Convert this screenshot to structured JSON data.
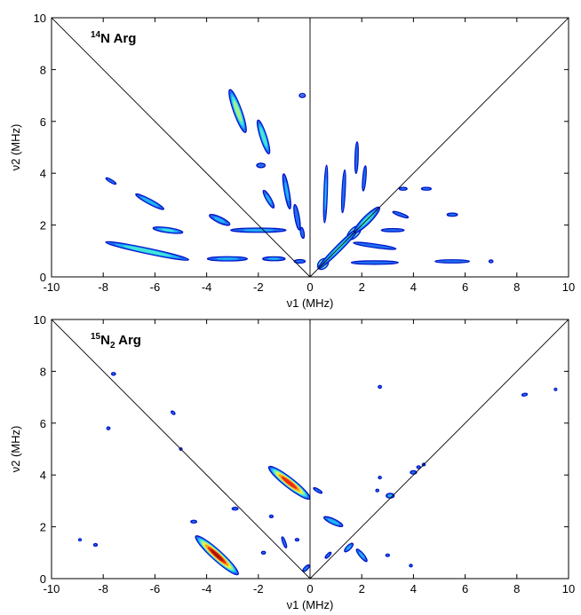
{
  "chart_data": [
    {
      "type": "contour",
      "title_sup": "14",
      "title_main": "N Arg",
      "title_sub": "",
      "title_tail": "",
      "xlabel": "ν1 (MHz)",
      "ylabel": "ν2 (MHz)",
      "xlim": [
        -10,
        10
      ],
      "ylim": [
        0,
        10
      ],
      "xticks": [
        -10,
        -8,
        -6,
        -4,
        -2,
        0,
        2,
        4,
        6,
        8,
        10
      ],
      "yticks": [
        0,
        2,
        4,
        6,
        8,
        10
      ],
      "grid": false,
      "reference_lines": [
        {
          "from": [
            -10,
            10
          ],
          "to": [
            0,
            0
          ]
        },
        {
          "from": [
            0,
            0
          ],
          "to": [
            10,
            10
          ]
        },
        {
          "from": [
            0,
            0
          ],
          "to": [
            0,
            10
          ]
        }
      ],
      "ridges": [
        {
          "center": [
            -2.8,
            6.4
          ],
          "length": 1.9,
          "width": 0.32,
          "angle": -70,
          "peak": 0.6
        },
        {
          "center": [
            -1.8,
            5.4
          ],
          "length": 1.5,
          "width": 0.26,
          "angle": -72,
          "peak": 0.5
        },
        {
          "center": [
            -0.3,
            7.0
          ],
          "length": 0.3,
          "width": 0.2,
          "angle": 0,
          "peak": 0.15
        },
        {
          "center": [
            -6.3,
            1.0
          ],
          "length": 3.6,
          "width": 0.22,
          "angle": -12,
          "peak": 0.5
        },
        {
          "center": [
            -5.5,
            1.8
          ],
          "length": 1.3,
          "width": 0.2,
          "angle": -8,
          "peak": 0.4
        },
        {
          "center": [
            -6.2,
            2.9
          ],
          "length": 1.4,
          "width": 0.2,
          "angle": -28,
          "peak": 0.35
        },
        {
          "center": [
            -7.7,
            3.7
          ],
          "length": 0.6,
          "width": 0.12,
          "angle": -30,
          "peak": 0.15
        },
        {
          "center": [
            -3.5,
            2.2
          ],
          "length": 1.0,
          "width": 0.25,
          "angle": -25,
          "peak": 0.3
        },
        {
          "center": [
            -3.2,
            0.7
          ],
          "length": 1.8,
          "width": 0.18,
          "angle": 0,
          "peak": 0.3
        },
        {
          "center": [
            -1.4,
            0.7
          ],
          "length": 1.0,
          "width": 0.16,
          "angle": 0,
          "peak": 0.3
        },
        {
          "center": [
            -2.0,
            1.8
          ],
          "length": 2.5,
          "width": 0.18,
          "angle": 0,
          "peak": 0.3
        },
        {
          "center": [
            -1.6,
            3.0
          ],
          "length": 0.9,
          "width": 0.2,
          "angle": -60,
          "peak": 0.3
        },
        {
          "center": [
            -1.9,
            4.3
          ],
          "length": 0.4,
          "width": 0.2,
          "angle": 0,
          "peak": 0.2
        },
        {
          "center": [
            -0.9,
            3.3
          ],
          "length": 1.6,
          "width": 0.2,
          "angle": -80,
          "peak": 0.3
        },
        {
          "center": [
            -0.5,
            2.3
          ],
          "length": 1.2,
          "width": 0.2,
          "angle": -80,
          "peak": 0.25
        },
        {
          "center": [
            -0.4,
            0.6
          ],
          "length": 0.5,
          "width": 0.15,
          "angle": 0,
          "peak": 0.25
        },
        {
          "center": [
            -0.3,
            1.7
          ],
          "length": 0.5,
          "width": 0.15,
          "angle": -80,
          "peak": 0.25
        },
        {
          "center": [
            0.5,
            0.5
          ],
          "length": 0.5,
          "width": 0.35,
          "angle": 45,
          "peak": 1.0
        },
        {
          "center": [
            1.7,
            1.7
          ],
          "length": 0.7,
          "width": 0.35,
          "angle": 45,
          "peak": 0.9
        },
        {
          "center": [
            1.1,
            1.1
          ],
          "length": 2.5,
          "width": 0.25,
          "angle": 45,
          "peak": 0.4
        },
        {
          "center": [
            2.2,
            2.2
          ],
          "length": 1.5,
          "width": 0.32,
          "angle": 45,
          "peak": 0.45
        },
        {
          "center": [
            0.6,
            3.2
          ],
          "length": 2.6,
          "width": 0.14,
          "angle": 88,
          "peak": 0.3
        },
        {
          "center": [
            1.3,
            3.3
          ],
          "length": 2.0,
          "width": 0.12,
          "angle": 87,
          "peak": 0.25
        },
        {
          "center": [
            1.8,
            4.6
          ],
          "length": 1.5,
          "width": 0.1,
          "angle": 88,
          "peak": 0.22
        },
        {
          "center": [
            2.1,
            3.8
          ],
          "length": 1.2,
          "width": 0.12,
          "angle": 85,
          "peak": 0.22
        },
        {
          "center": [
            2.5,
            1.2
          ],
          "length": 2.0,
          "width": 0.16,
          "angle": -8,
          "peak": 0.25
        },
        {
          "center": [
            2.5,
            0.55
          ],
          "length": 2.2,
          "width": 0.15,
          "angle": 0,
          "peak": 0.25
        },
        {
          "center": [
            5.5,
            2.4
          ],
          "length": 0.5,
          "width": 0.12,
          "angle": 0,
          "peak": 0.2
        },
        {
          "center": [
            5.5,
            0.6
          ],
          "length": 1.6,
          "width": 0.12,
          "angle": 0,
          "peak": 0.25
        },
        {
          "center": [
            7.0,
            0.6
          ],
          "length": 0.2,
          "width": 0.1,
          "angle": 0,
          "peak": 0.15
        },
        {
          "center": [
            3.5,
            2.4
          ],
          "length": 0.8,
          "width": 0.13,
          "angle": -20,
          "peak": 0.2
        },
        {
          "center": [
            4.5,
            3.4
          ],
          "length": 0.5,
          "width": 0.1,
          "angle": 0,
          "peak": 0.15
        },
        {
          "center": [
            3.6,
            3.4
          ],
          "length": 0.4,
          "width": 0.12,
          "angle": 0,
          "peak": 0.15
        },
        {
          "center": [
            3.2,
            1.8
          ],
          "length": 1.1,
          "width": 0.12,
          "angle": 0,
          "peak": 0.2
        }
      ]
    },
    {
      "type": "contour",
      "title_sup": "15",
      "title_main": "N",
      "title_sub": "2",
      "title_tail": " Arg",
      "xlabel": "ν1 (MHz)",
      "ylabel": "ν2 (MHz)",
      "xlim": [
        -10,
        10
      ],
      "ylim": [
        0,
        10
      ],
      "xticks": [
        -10,
        -8,
        -6,
        -4,
        -2,
        0,
        2,
        4,
        6,
        8,
        10
      ],
      "yticks": [
        0,
        2,
        4,
        6,
        8,
        10
      ],
      "grid": false,
      "reference_lines": [
        {
          "from": [
            -10,
            10
          ],
          "to": [
            0,
            0
          ]
        },
        {
          "from": [
            0,
            0
          ],
          "to": [
            10,
            10
          ]
        },
        {
          "from": [
            0,
            0
          ],
          "to": [
            0,
            10
          ]
        }
      ],
      "ridges": [
        {
          "center": [
            -3.6,
            0.9
          ],
          "length": 2.3,
          "width": 0.4,
          "angle": -42,
          "peak": 1.0
        },
        {
          "center": [
            -0.8,
            3.7
          ],
          "length": 2.1,
          "width": 0.38,
          "angle": -38,
          "peak": 0.95
        },
        {
          "center": [
            -2.9,
            2.7
          ],
          "length": 0.3,
          "width": 0.1,
          "angle": 0,
          "peak": 0.15
        },
        {
          "center": [
            -4.5,
            2.2
          ],
          "length": 0.3,
          "width": 0.1,
          "angle": 0,
          "peak": 0.15
        },
        {
          "center": [
            -1.8,
            1.0
          ],
          "length": 0.2,
          "width": 0.1,
          "angle": 0,
          "peak": 0.15
        },
        {
          "center": [
            -1.0,
            1.4
          ],
          "length": 0.6,
          "width": 0.1,
          "angle": -70,
          "peak": 0.15
        },
        {
          "center": [
            -1.5,
            2.4
          ],
          "length": 0.2,
          "width": 0.1,
          "angle": 0,
          "peak": 0.12
        },
        {
          "center": [
            -0.15,
            0.4
          ],
          "length": 0.4,
          "width": 0.15,
          "angle": 45,
          "peak": 0.25
        },
        {
          "center": [
            -0.5,
            1.5
          ],
          "length": 0.2,
          "width": 0.1,
          "angle": 0,
          "peak": 0.12
        },
        {
          "center": [
            0.9,
            2.2
          ],
          "length": 0.9,
          "width": 0.22,
          "angle": -25,
          "peak": 0.35
        },
        {
          "center": [
            1.5,
            1.2
          ],
          "length": 0.5,
          "width": 0.18,
          "angle": 45,
          "peak": 0.3
        },
        {
          "center": [
            2.0,
            0.9
          ],
          "length": 0.7,
          "width": 0.18,
          "angle": -50,
          "peak": 0.3
        },
        {
          "center": [
            0.7,
            0.9
          ],
          "length": 0.4,
          "width": 0.12,
          "angle": 45,
          "peak": 0.15
        },
        {
          "center": [
            0.3,
            3.4
          ],
          "length": 0.5,
          "width": 0.12,
          "angle": -30,
          "peak": 0.15
        },
        {
          "center": [
            3.1,
            3.2
          ],
          "length": 0.35,
          "width": 0.2,
          "angle": 0,
          "peak": 0.3
        },
        {
          "center": [
            4.0,
            4.1
          ],
          "length": 0.3,
          "width": 0.15,
          "angle": 0,
          "peak": 0.2
        },
        {
          "center": [
            4.4,
            4.4
          ],
          "length": 0.15,
          "width": 0.1,
          "angle": 0,
          "peak": 0.12
        },
        {
          "center": [
            4.2,
            4.3
          ],
          "length": 0.2,
          "width": 0.1,
          "angle": 0,
          "peak": 0.12
        },
        {
          "center": [
            2.7,
            7.4
          ],
          "length": 0.15,
          "width": 0.12,
          "angle": 0,
          "peak": 0.15
        },
        {
          "center": [
            2.6,
            3.4
          ],
          "length": 0.15,
          "width": 0.1,
          "angle": 0,
          "peak": 0.12
        },
        {
          "center": [
            2.7,
            3.9
          ],
          "length": 0.15,
          "width": 0.1,
          "angle": 0,
          "peak": 0.12
        },
        {
          "center": [
            3.0,
            0.9
          ],
          "length": 0.2,
          "width": 0.1,
          "angle": 0,
          "peak": 0.12
        },
        {
          "center": [
            3.9,
            0.5
          ],
          "length": 0.15,
          "width": 0.1,
          "angle": 0,
          "peak": 0.12
        },
        {
          "center": [
            -7.6,
            7.9
          ],
          "length": 0.2,
          "width": 0.12,
          "angle": 0,
          "peak": 0.15
        },
        {
          "center": [
            -7.8,
            5.8
          ],
          "length": 0.15,
          "width": 0.12,
          "angle": 0,
          "peak": 0.15
        },
        {
          "center": [
            -5.3,
            6.4
          ],
          "length": 0.25,
          "width": 0.1,
          "angle": -40,
          "peak": 0.12
        },
        {
          "center": [
            -8.3,
            1.3
          ],
          "length": 0.2,
          "width": 0.1,
          "angle": 0,
          "peak": 0.12
        },
        {
          "center": [
            -8.9,
            1.5
          ],
          "length": 0.1,
          "width": 0.08,
          "angle": 0,
          "peak": 0.1
        },
        {
          "center": [
            8.3,
            7.1
          ],
          "length": 0.3,
          "width": 0.08,
          "angle": 10,
          "peak": 0.12
        },
        {
          "center": [
            9.5,
            7.3
          ],
          "length": 0.1,
          "width": 0.08,
          "angle": 0,
          "peak": 0.1
        },
        {
          "center": [
            -5.0,
            5.0
          ],
          "length": 0.15,
          "width": 0.08,
          "angle": 0,
          "peak": 0.1
        }
      ]
    }
  ]
}
